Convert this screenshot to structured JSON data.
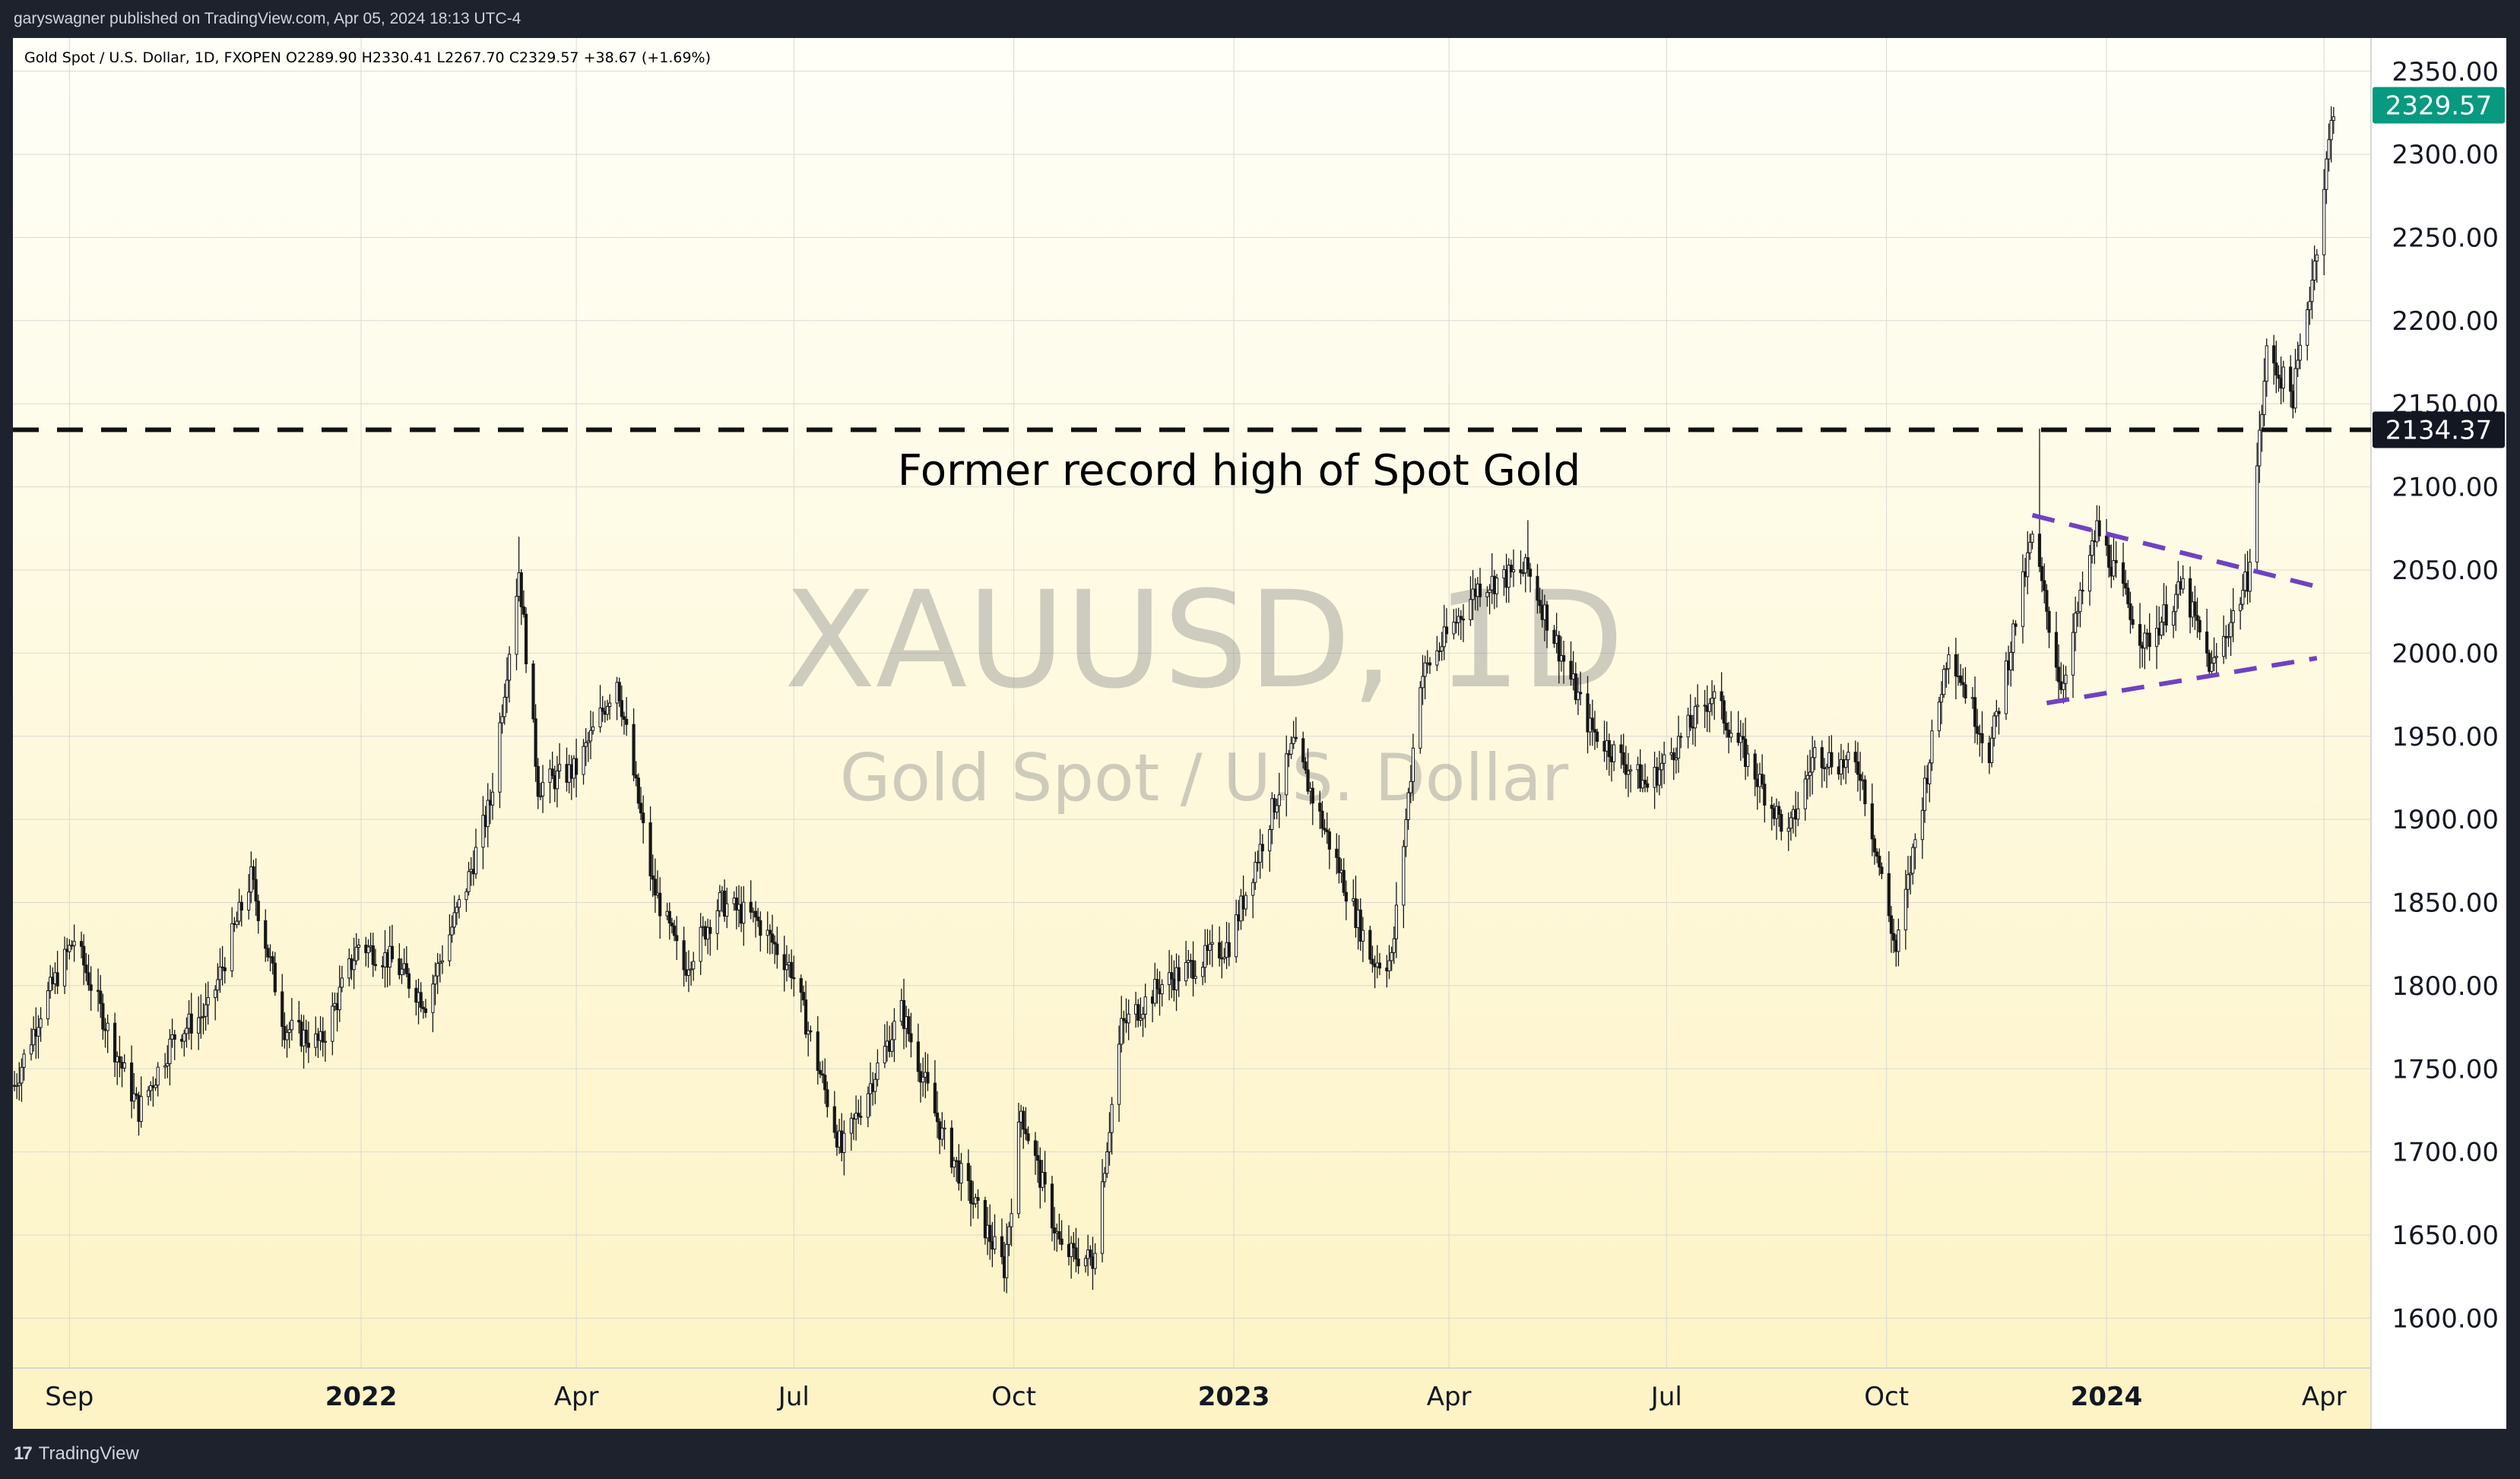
{
  "header": {
    "published_by": "garyswagner published on TradingView.com, Apr 05, 2024 18:13 UTC-4"
  },
  "legend": {
    "symbol_line": "Gold Spot / U.S. Dollar, 1D, FXOPEN  O2289.90  H2330.41  L2267.70  C2329.57  +38.67 (+1.69%)"
  },
  "watermark": {
    "ticker": "XAUUSD, 1D",
    "name": "Gold Spot / U.S. Dollar"
  },
  "annotation": {
    "text": "Former record high of Spot Gold"
  },
  "footer": {
    "brand": "TradingView",
    "logo_glyph": "17"
  },
  "colors": {
    "bg_top": "#fffff8",
    "bg_bottom": "#fdf3c4",
    "candle": "#161616",
    "accent_last": "#089981",
    "level_label_bg": "#131722",
    "triangle": "#6f42c1"
  },
  "chart_data": {
    "type": "candlestick",
    "title": "Gold Spot / U.S. Dollar",
    "y_axis": {
      "ylim": [
        1570,
        2370
      ],
      "ticks": [
        "2350.00",
        "2300.00",
        "2250.00",
        "2200.00",
        "2150.00",
        "2100.00",
        "2050.00",
        "2000.00",
        "1950.00",
        "1900.00",
        "1850.00",
        "1800.00",
        "1750.00",
        "1700.00",
        "1650.00",
        "1600.00"
      ]
    },
    "x_axis": {
      "labels": [
        {
          "label": "Sep",
          "date": "2021-09-01"
        },
        {
          "label": "2022",
          "date": "2022-01-01",
          "bold": true
        },
        {
          "label": "Apr",
          "date": "2022-04-01"
        },
        {
          "label": "Jul",
          "date": "2022-07-01"
        },
        {
          "label": "Oct",
          "date": "2022-10-01"
        },
        {
          "label": "2023",
          "date": "2023-01-01",
          "bold": true
        },
        {
          "label": "Apr",
          "date": "2023-04-01"
        },
        {
          "label": "Jul",
          "date": "2023-07-01"
        },
        {
          "label": "Oct",
          "date": "2023-10-01"
        },
        {
          "label": "2024",
          "date": "2024-01-01",
          "bold": true
        },
        {
          "label": "Apr",
          "date": "2024-04-01"
        }
      ],
      "range": [
        "2021-08-09",
        "2024-04-20"
      ]
    },
    "price_path": [
      [
        "2021-08-09",
        1740
      ],
      [
        "2021-08-20",
        1785
      ],
      [
        "2021-09-03",
        1828
      ],
      [
        "2021-09-20",
        1762
      ],
      [
        "2021-09-30",
        1725
      ],
      [
        "2021-10-15",
        1770
      ],
      [
        "2021-10-29",
        1785
      ],
      [
        "2021-11-16",
        1865
      ],
      [
        "2021-11-30",
        1775
      ],
      [
        "2021-12-15",
        1765
      ],
      [
        "2021-12-31",
        1825
      ],
      [
        "2022-01-14",
        1815
      ],
      [
        "2022-01-28",
        1790
      ],
      [
        "2022-02-14",
        1860
      ],
      [
        "2022-02-24",
        1910
      ],
      [
        "2022-03-08",
        2050
      ],
      [
        "2022-03-16",
        1920
      ],
      [
        "2022-04-01",
        1930
      ],
      [
        "2022-04-18",
        1985
      ],
      [
        "2022-05-03",
        1860
      ],
      [
        "2022-05-16",
        1810
      ],
      [
        "2022-05-31",
        1850
      ],
      [
        "2022-06-15",
        1840
      ],
      [
        "2022-06-30",
        1810
      ],
      [
        "2022-07-21",
        1700
      ],
      [
        "2022-08-15",
        1785
      ],
      [
        "2022-09-01",
        1710
      ],
      [
        "2022-09-27",
        1630
      ],
      [
        "2022-10-04",
        1725
      ],
      [
        "2022-10-21",
        1640
      ],
      [
        "2022-11-03",
        1635
      ],
      [
        "2022-11-15",
        1775
      ],
      [
        "2022-12-01",
        1800
      ],
      [
        "2022-12-30",
        1825
      ],
      [
        "2023-01-26",
        1945
      ],
      [
        "2023-02-28",
        1815
      ],
      [
        "2023-03-08",
        1815
      ],
      [
        "2023-03-20",
        1985
      ],
      [
        "2023-04-13",
        2040
      ],
      [
        "2023-05-04",
        2050
      ],
      [
        "2023-05-30",
        1955
      ],
      [
        "2023-06-23",
        1920
      ],
      [
        "2023-07-20",
        1975
      ],
      [
        "2023-08-21",
        1890
      ],
      [
        "2023-09-01",
        1940
      ],
      [
        "2023-09-20",
        1930
      ],
      [
        "2023-10-05",
        1820
      ],
      [
        "2023-10-27",
        2005
      ],
      [
        "2023-11-13",
        1940
      ],
      [
        "2023-12-01",
        2070
      ],
      [
        "2023-12-13",
        1980
      ],
      [
        "2023-12-28",
        2075
      ],
      [
        "2024-01-17",
        2005
      ],
      [
        "2024-02-02",
        2040
      ],
      [
        "2024-02-14",
        1990
      ],
      [
        "2024-02-29",
        2045
      ],
      [
        "2024-03-08",
        2180
      ],
      [
        "2024-03-19",
        2155
      ],
      [
        "2024-03-28",
        2235
      ],
      [
        "2024-04-05",
        2329.57
      ]
    ],
    "wick_extremes": [
      {
        "date": "2023-12-04",
        "high": 2135
      },
      {
        "date": "2022-03-08",
        "high": 2070
      },
      {
        "date": "2023-05-04",
        "high": 2080
      },
      {
        "date": "2022-09-28",
        "low": 1615
      },
      {
        "date": "2022-11-03",
        "low": 1617
      }
    ],
    "last_price": {
      "label": "2329.57",
      "value": 2329.57
    },
    "horizontal_level": {
      "label": "2134.37",
      "value": 2134.37,
      "style": "dashed"
    },
    "triangle_lines": [
      {
        "from": [
          "2023-12-01",
          2083
        ],
        "to": [
          "2024-03-29",
          2040
        ]
      },
      {
        "from": [
          "2023-12-07",
          1970
        ],
        "to": [
          "2024-03-29",
          1997
        ]
      }
    ]
  }
}
